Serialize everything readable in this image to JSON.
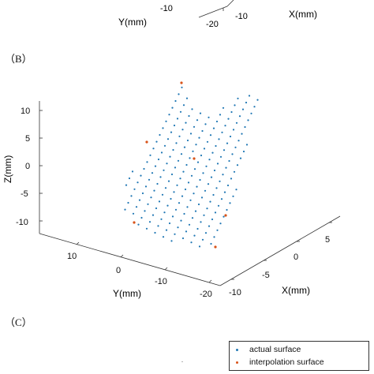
{
  "panels": {
    "b_label": "（B）",
    "c_label": "（C）"
  },
  "colors": {
    "actual": "#1f77b4",
    "interpolation": "#d95319",
    "axis": "#333333"
  },
  "top_fragment": {
    "y_label": "Y(mm)",
    "x_label": "X(mm)",
    "y_ticks": [
      "-10",
      "-20"
    ],
    "x_ticks": [
      "-10"
    ]
  },
  "chart_data": {
    "type": "scatter",
    "title": "",
    "xlabel": "X(mm)",
    "ylabel": "Y(mm)",
    "zlabel": "Z(mm)",
    "x_ticks": [
      "-10",
      "-5",
      "0",
      "5"
    ],
    "y_ticks": [
      "10",
      "0",
      "-10",
      "-20"
    ],
    "z_ticks": [
      "10",
      "5",
      "0",
      "-5",
      "-10"
    ],
    "xlim": [
      -10,
      9
    ],
    "ylim": [
      -20,
      17
    ],
    "zlim": [
      -12,
      12
    ],
    "legend_position": "bottom-right",
    "series": [
      {
        "name": "actual surface",
        "color": "#1f77b4",
        "marker": "dot",
        "grid_points": 400
      },
      {
        "name": "interpolation surface",
        "color": "#d95319",
        "marker": "dot",
        "points_zmm": [
          13.8,
          4.2,
          1.2,
          -8.7,
          -10.2,
          -14.7
        ]
      }
    ]
  },
  "legend": {
    "actual": "actual surface",
    "interpolation": "interpolation surface"
  }
}
